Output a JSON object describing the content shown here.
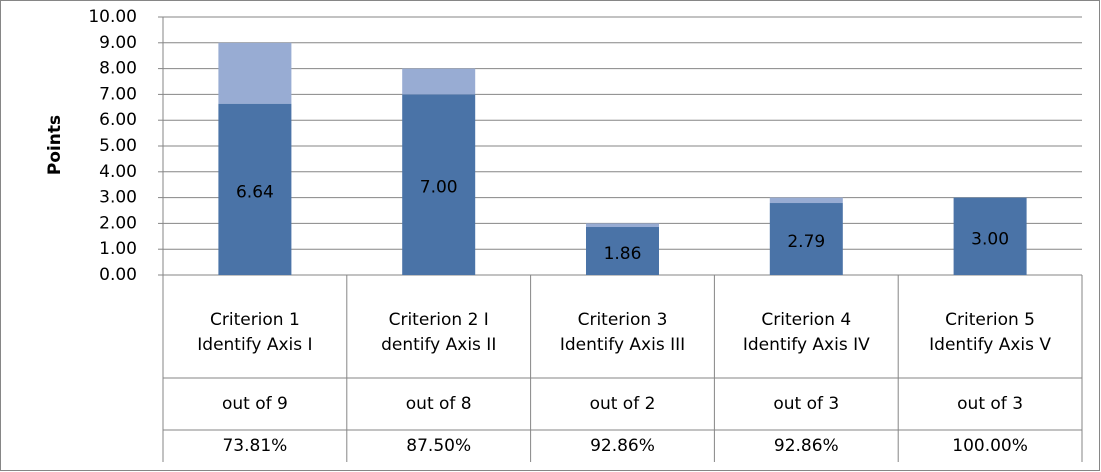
{
  "chart_data": {
    "type": "bar",
    "stacked": true,
    "y_axis_label": "Points",
    "categories": [
      [
        "Criterion 1",
        "Identify Axis I"
      ],
      [
        "Criterion 2 I",
        "dentify Axis II"
      ],
      [
        "Criterion 3",
        "Identify Axis III"
      ],
      [
        "Criterion 4",
        "Identify Axis IV"
      ],
      [
        "Criterion 5",
        "Identify Axis V"
      ]
    ],
    "series": [
      {
        "color": "#4a73a7",
        "values": [
          6.64,
          7.0,
          1.86,
          2.79,
          3.0
        ],
        "value_labels": [
          "6.64",
          "7.00",
          "1.86",
          "2.79",
          "3.00"
        ]
      },
      {
        "color": "#98acd3",
        "values": [
          2.36,
          1.0,
          0.14,
          0.21,
          0
        ]
      }
    ],
    "ylim": [
      0,
      10
    ],
    "yticks": [
      {
        "value": 0,
        "label": "0.00"
      },
      {
        "value": 1,
        "label": "1.00"
      },
      {
        "value": 2,
        "label": "2.00"
      },
      {
        "value": 3,
        "label": "3.00"
      },
      {
        "value": 4,
        "label": "4.00"
      },
      {
        "value": 5,
        "label": "5.00"
      },
      {
        "value": 6,
        "label": "6.00"
      },
      {
        "value": 7,
        "label": "7.00"
      },
      {
        "value": 8,
        "label": "8.00"
      },
      {
        "value": 9,
        "label": "9.00"
      },
      {
        "value": 10,
        "label": "10.00"
      }
    ],
    "grid": true,
    "table_rows": [
      [
        "out of 9",
        "out of 8",
        "out of 2",
        "out of 3",
        "out of 3"
      ],
      [
        "73.81%",
        "87.50%",
        "92.86%",
        "92.86%",
        "100.00%"
      ]
    ]
  }
}
